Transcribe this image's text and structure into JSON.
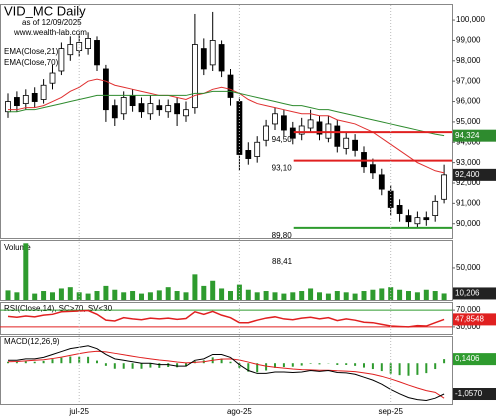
{
  "chart_data": [
    {
      "type": "candlestick",
      "title": "VID_MC Daily",
      "subtitle": "as of 12/09/2025",
      "source": "www.wealth-lab.com",
      "open": [
        95.5,
        96.2,
        95.9,
        96.4,
        96.1,
        96.9,
        97.5,
        98.3,
        98.5,
        98.6,
        99.0,
        97.6,
        95.8,
        95.4,
        96.3,
        95.9,
        95.4,
        95.8,
        95.5,
        95.9,
        95.3,
        95.7,
        98.6,
        97.8,
        98.8,
        97.3,
        96.0,
        93.6,
        93.3,
        94.1,
        94.9,
        95.3,
        94.7,
        94.4,
        94.7,
        95.0,
        94.2,
        94.8,
        93.7,
        94.1,
        93.5,
        92.9,
        92.4,
        91.6,
        90.9,
        90.4,
        90.0,
        90.3,
        90.4,
        91.2
      ],
      "high": [
        96.4,
        96.5,
        96.6,
        96.7,
        97.1,
        97.8,
        98.9,
        99.2,
        99.3,
        99.4,
        99.2,
        97.8,
        96.1,
        96.5,
        96.6,
        96.2,
        96.3,
        96.1,
        96.1,
        96.2,
        96.0,
        100.3,
        99.1,
        100.4,
        99.0,
        97.6,
        96.2,
        94.0,
        94.3,
        95.1,
        95.7,
        95.6,
        95.0,
        95.2,
        95.6,
        95.3,
        95.3,
        95.1,
        94.5,
        94.4,
        93.8,
        93.2,
        92.7,
        91.9,
        91.2,
        90.7,
        90.6,
        90.6,
        91.4,
        92.9
      ],
      "low": [
        95.2,
        95.5,
        95.6,
        95.7,
        95.9,
        96.6,
        97.3,
        98.0,
        98.2,
        98.3,
        97.5,
        95.0,
        94.8,
        95.1,
        95.5,
        95.2,
        95.1,
        95.3,
        95.2,
        94.8,
        95.0,
        95.4,
        97.3,
        97.5,
        97.2,
        95.8,
        92.6,
        92.9,
        93.0,
        93.8,
        94.6,
        94.3,
        93.9,
        94.1,
        94.5,
        94.1,
        94.0,
        93.5,
        93.4,
        93.3,
        92.5,
        92.2,
        91.4,
        90.4,
        90.1,
        89.8,
        89.8,
        89.9,
        90.1,
        91.0
      ],
      "close": [
        96.0,
        95.8,
        96.3,
        96.0,
        96.8,
        97.4,
        98.6,
        98.8,
        98.9,
        99.1,
        97.8,
        95.6,
        95.2,
        96.2,
        95.8,
        95.5,
        95.9,
        95.6,
        95.8,
        95.4,
        95.6,
        98.8,
        97.6,
        99.0,
        97.5,
        96.2,
        93.4,
        93.2,
        94.0,
        94.8,
        95.4,
        94.6,
        94.2,
        94.8,
        95.1,
        94.4,
        94.9,
        93.8,
        94.2,
        93.6,
        92.8,
        92.5,
        91.7,
        90.8,
        90.5,
        90.1,
        90.3,
        90.2,
        91.1,
        92.4
      ],
      "close_last_label": "92,400",
      "series": [
        {
          "name": "EMA(Close,21)",
          "color": "#e03030",
          "values": [
            95.6,
            95.6,
            95.7,
            95.7,
            95.8,
            96.0,
            96.2,
            96.5,
            96.7,
            97.0,
            97.1,
            97.0,
            96.8,
            96.7,
            96.6,
            96.5,
            96.4,
            96.3,
            96.3,
            96.2,
            96.1,
            96.3,
            96.4,
            96.6,
            96.7,
            96.6,
            96.4,
            96.1,
            95.9,
            95.8,
            95.7,
            95.6,
            95.5,
            95.4,
            95.4,
            95.3,
            95.3,
            95.1,
            95.0,
            94.9,
            94.7,
            94.5,
            94.2,
            93.9,
            93.6,
            93.3,
            93.0,
            92.8,
            92.6,
            92.5
          ]
        },
        {
          "name": "EMA(Close,70)",
          "color": "#2e8b2e",
          "values": [
            95.5,
            95.5,
            95.6,
            95.6,
            95.7,
            95.8,
            95.9,
            96.0,
            96.1,
            96.2,
            96.3,
            96.3,
            96.3,
            96.3,
            96.3,
            96.3,
            96.3,
            96.3,
            96.3,
            96.3,
            96.3,
            96.4,
            96.4,
            96.5,
            96.5,
            96.5,
            96.4,
            96.3,
            96.2,
            96.1,
            96.0,
            95.9,
            95.8,
            95.8,
            95.7,
            95.6,
            95.6,
            95.5,
            95.4,
            95.3,
            95.2,
            95.1,
            95.0,
            94.9,
            94.8,
            94.7,
            94.6,
            94.5,
            94.4,
            94.324
          ],
          "last_label": "94,324"
        }
      ],
      "levels": [
        {
          "value": 94.5,
          "label": "94,50",
          "color": "#e02020"
        },
        {
          "value": 93.1,
          "label": "93,10",
          "color": "#e02020"
        },
        {
          "value": 89.8,
          "label": "89,80",
          "color": "#2e9b2e"
        }
      ],
      "ylim": [
        89.3,
        100.74
      ],
      "yticks": [
        {
          "value": 90,
          "label": "90,000"
        },
        {
          "value": 91,
          "label": "91,000"
        },
        {
          "value": 92,
          "label": "92,000"
        },
        {
          "value": 93,
          "label": "93,000"
        },
        {
          "value": 94,
          "label": "94,000"
        },
        {
          "value": 95,
          "label": "95,000"
        },
        {
          "value": 96,
          "label": "96,000"
        },
        {
          "value": 97,
          "label": "97,000"
        },
        {
          "value": 98,
          "label": "98,000"
        },
        {
          "value": 99,
          "label": "99,000"
        },
        {
          "value": 100,
          "label": "100,000"
        }
      ]
    },
    {
      "type": "bar",
      "title": "Volume",
      "annotation": "88,41",
      "color": "#2e9b2e",
      "values": [
        15,
        12,
        88.41,
        10,
        14,
        12,
        18,
        20,
        12,
        10,
        14,
        22,
        16,
        12,
        14,
        10,
        12,
        15,
        20,
        14,
        12,
        40,
        22,
        30,
        18,
        14,
        24,
        16,
        12,
        14,
        12,
        10,
        12,
        14,
        18,
        12,
        10,
        14,
        12,
        10,
        14,
        16,
        18,
        20,
        16,
        14,
        12,
        16,
        14,
        10.206
      ],
      "last_label": "10,206",
      "ylim": [
        0,
        92
      ],
      "yticks": [
        {
          "value": 50,
          "label": "50,000"
        }
      ]
    },
    {
      "type": "line",
      "title": "RSI(Close,14), SC>70, SV<30",
      "color": "#e02020",
      "values": [
        55,
        53,
        56,
        54,
        58,
        60,
        66,
        67,
        68,
        69,
        60,
        46,
        44,
        52,
        49,
        47,
        51,
        49,
        51,
        48,
        50,
        66,
        60,
        67,
        58,
        52,
        40,
        40,
        46,
        51,
        54,
        49,
        47,
        51,
        53,
        49,
        52,
        45,
        49,
        46,
        41,
        40,
        36,
        32,
        31,
        30,
        33,
        32,
        40,
        47.8548
      ],
      "last_label": "47,8548",
      "ylim": [
        13,
        87
      ],
      "yticks": [
        {
          "value": 70,
          "label": "70,000"
        },
        {
          "value": 30,
          "label": "30,000"
        }
      ],
      "levels": [
        {
          "value": 70,
          "color": "#2e9b2e"
        },
        {
          "value": 30,
          "color": "#e02020"
        }
      ]
    },
    {
      "type": "macd",
      "title": "MACD(12,26,9)",
      "categories": [
        null,
        null,
        null,
        null,
        null,
        null,
        null,
        null,
        "jul-25",
        null,
        null,
        null,
        null,
        null,
        null,
        null,
        null,
        null,
        null,
        null,
        null,
        null,
        null,
        null,
        null,
        null,
        "ago-25",
        null,
        null,
        null,
        null,
        null,
        null,
        null,
        null,
        null,
        null,
        null,
        null,
        null,
        null,
        null,
        null,
        "sep-25",
        null,
        null,
        null,
        null,
        null,
        null
      ],
      "macd": {
        "color": "#000000",
        "values": [
          0.1,
          0.1,
          0.15,
          0.15,
          0.2,
          0.3,
          0.4,
          0.5,
          0.55,
          0.6,
          0.5,
          0.3,
          0.15,
          0.1,
          0.05,
          0.0,
          0.0,
          -0.05,
          -0.05,
          -0.1,
          -0.1,
          0.1,
          0.15,
          0.3,
          0.3,
          0.2,
          -0.05,
          -0.25,
          -0.35,
          -0.35,
          -0.3,
          -0.3,
          -0.32,
          -0.3,
          -0.25,
          -0.28,
          -0.25,
          -0.32,
          -0.33,
          -0.38,
          -0.48,
          -0.58,
          -0.72,
          -0.9,
          -1.05,
          -1.18,
          -1.25,
          -1.28,
          -1.2,
          -1.057
        ],
        "last_label": "-1,0570"
      },
      "signal": {
        "color": "#e02020",
        "values": [
          0.05,
          0.06,
          0.08,
          0.1,
          0.12,
          0.16,
          0.21,
          0.27,
          0.33,
          0.38,
          0.41,
          0.39,
          0.34,
          0.29,
          0.24,
          0.19,
          0.15,
          0.11,
          0.08,
          0.04,
          0.01,
          0.03,
          0.05,
          0.1,
          0.14,
          0.15,
          0.11,
          0.04,
          -0.04,
          -0.1,
          -0.14,
          -0.17,
          -0.2,
          -0.22,
          -0.23,
          -0.24,
          -0.24,
          -0.26,
          -0.27,
          -0.29,
          -0.33,
          -0.38,
          -0.45,
          -0.54,
          -0.64,
          -0.75,
          -0.85,
          -0.94,
          -1.0,
          -1.2
        ]
      },
      "histogram": {
        "color": "#2e9b2e",
        "values": [
          0.05,
          0.04,
          0.07,
          0.05,
          0.08,
          0.14,
          0.19,
          0.23,
          0.22,
          0.22,
          0.09,
          -0.09,
          -0.19,
          -0.19,
          -0.19,
          -0.19,
          -0.15,
          -0.16,
          -0.13,
          -0.14,
          -0.11,
          0.07,
          0.1,
          0.2,
          0.16,
          0.05,
          -0.16,
          -0.29,
          -0.31,
          -0.25,
          -0.16,
          -0.13,
          -0.12,
          -0.08,
          -0.02,
          -0.04,
          -0.01,
          -0.06,
          -0.06,
          -0.09,
          -0.15,
          -0.2,
          -0.27,
          -0.36,
          -0.41,
          -0.43,
          -0.4,
          -0.34,
          -0.2,
          0.1406
        ],
        "last_label": "0,1406"
      },
      "ylim": [
        -1.4,
        0.9
      ]
    }
  ]
}
